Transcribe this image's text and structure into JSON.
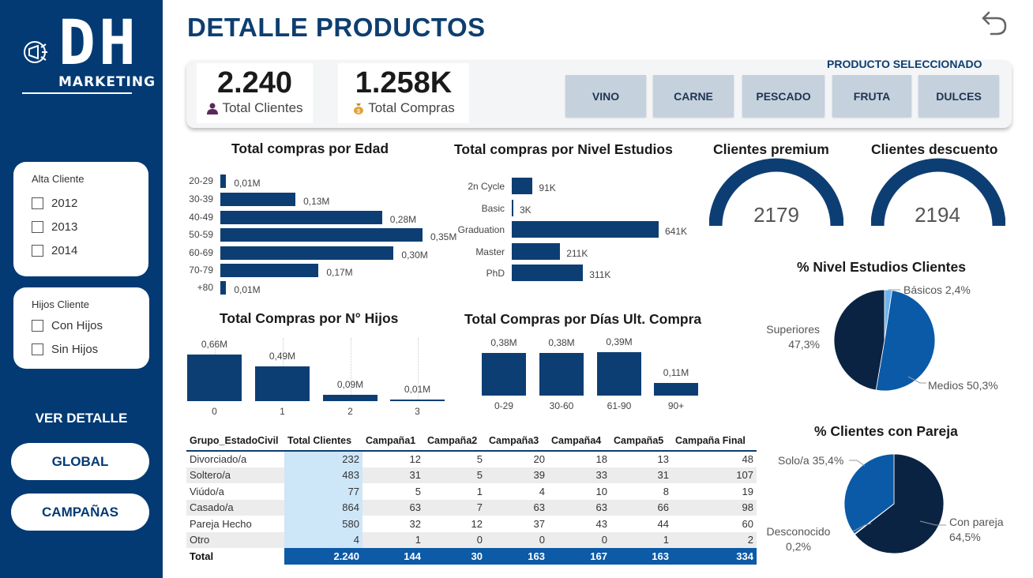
{
  "logo": {
    "letters": "DH",
    "subtitle": "MARKETING"
  },
  "filters": {
    "alta": {
      "title": "Alta Cliente",
      "options": [
        "2012",
        "2013",
        "2014"
      ]
    },
    "hijos": {
      "title": "Hijos Cliente",
      "options": [
        "Con Hijos",
        "Sin Hijos"
      ]
    }
  },
  "nav": {
    "heading": "VER DETALLE",
    "global": "GLOBAL",
    "campanas": "CAMPAÑAS"
  },
  "page_title": "DETALLE PRODUCTOS",
  "kpis": {
    "clientes": {
      "value": "2.240",
      "label": "Total Clientes"
    },
    "compras": {
      "value": "1.258K",
      "label": "Total Compras"
    }
  },
  "product_selector": {
    "title": "PRODUCTO SELECCIONADO",
    "buttons": [
      "VINO",
      "CARNE",
      "PESCADO",
      "FRUTA",
      "DULCES"
    ]
  },
  "gauges": {
    "premium": {
      "title": "Clientes premium",
      "value": "2179"
    },
    "descuento": {
      "title": "Clientes descuento",
      "value": "2194"
    }
  },
  "colors": {
    "primary": "#033a73",
    "bar": "#0d3e73",
    "pie_dark": "#0a2342",
    "pie_mid": "#0a5aa8",
    "pie_light": "#6cb4ee"
  },
  "chart_data": [
    {
      "type": "bar",
      "orientation": "horizontal",
      "title": "Total compras por Edad",
      "categories": [
        "20-29",
        "30-39",
        "40-49",
        "50-59",
        "60-69",
        "70-79",
        "+80"
      ],
      "values": [
        0.01,
        0.13,
        0.28,
        0.35,
        0.3,
        0.17,
        0.01
      ],
      "labels": [
        "0,01M",
        "0,13M",
        "0,28M",
        "0,35M",
        "0,30M",
        "0,17M",
        "0,01M"
      ],
      "xlim": [
        0,
        0.35
      ]
    },
    {
      "type": "bar",
      "orientation": "horizontal",
      "title": "Total compras por Nivel Estudios",
      "categories": [
        "2n Cycle",
        "Basic",
        "Graduation",
        "Master",
        "PhD"
      ],
      "values": [
        91,
        3,
        641,
        211,
        311
      ],
      "labels": [
        "91K",
        "3K",
        "641K",
        "211K",
        "311K"
      ],
      "xlim": [
        0,
        641
      ]
    },
    {
      "type": "bar",
      "title": "Total Compras por N° Hijos",
      "categories": [
        "0",
        "1",
        "2",
        "3"
      ],
      "values": [
        0.66,
        0.49,
        0.09,
        0.01
      ],
      "labels": [
        "0,66M",
        "0,49M",
        "0,09M",
        "0,01M"
      ],
      "ylim": [
        0,
        0.66
      ]
    },
    {
      "type": "bar",
      "title": "Total Compras por Días Ult. Compra",
      "categories": [
        "0-29",
        "30-60",
        "61-90",
        "90+"
      ],
      "values": [
        0.38,
        0.38,
        0.39,
        0.11
      ],
      "labels": [
        "0,38M",
        "0,38M",
        "0,39M",
        "0,11M"
      ],
      "ylim": [
        0,
        0.39
      ]
    },
    {
      "type": "pie",
      "title": "% Nivel Estudios Clientes",
      "slices": [
        {
          "name": "Básicos",
          "value": 2.4,
          "label": "Básicos 2,4%"
        },
        {
          "name": "Medios",
          "value": 50.3,
          "label": "Medios 50,3%"
        },
        {
          "name": "Superiores",
          "value": 47.3,
          "label": "Superiores",
          "pct": "47,3%"
        }
      ]
    },
    {
      "type": "pie",
      "title": "% Clientes con Pareja",
      "slices": [
        {
          "name": "Con pareja",
          "value": 64.5,
          "label": "Con pareja",
          "pct": "64,5%"
        },
        {
          "name": "Desconocido",
          "value": 0.2,
          "label": "Desconocido",
          "pct": "0,2%"
        },
        {
          "name": "Solo/a",
          "value": 35.4,
          "label": "Solo/a 35,4%"
        }
      ]
    },
    {
      "type": "table",
      "columns": [
        "Grupo_EstadoCivil",
        "Total Clientes",
        "Campaña1",
        "Campaña2",
        "Campaña3",
        "Campaña4",
        "Campaña5",
        "Campaña Final"
      ],
      "rows": [
        [
          "Divorciado/a",
          "232",
          "12",
          "5",
          "20",
          "18",
          "13",
          "48"
        ],
        [
          "Soltero/a",
          "483",
          "31",
          "5",
          "39",
          "33",
          "31",
          "107"
        ],
        [
          "Viúdo/a",
          "77",
          "5",
          "1",
          "4",
          "10",
          "8",
          "19"
        ],
        [
          "Casado/a",
          "864",
          "63",
          "7",
          "63",
          "63",
          "66",
          "98"
        ],
        [
          "Pareja Hecho",
          "580",
          "32",
          "12",
          "37",
          "43",
          "44",
          "60"
        ],
        [
          "Otro",
          "4",
          "1",
          "0",
          "0",
          "0",
          "1",
          "2"
        ]
      ],
      "total": [
        "Total",
        "2.240",
        "144",
        "30",
        "163",
        "167",
        "163",
        "334"
      ]
    }
  ]
}
